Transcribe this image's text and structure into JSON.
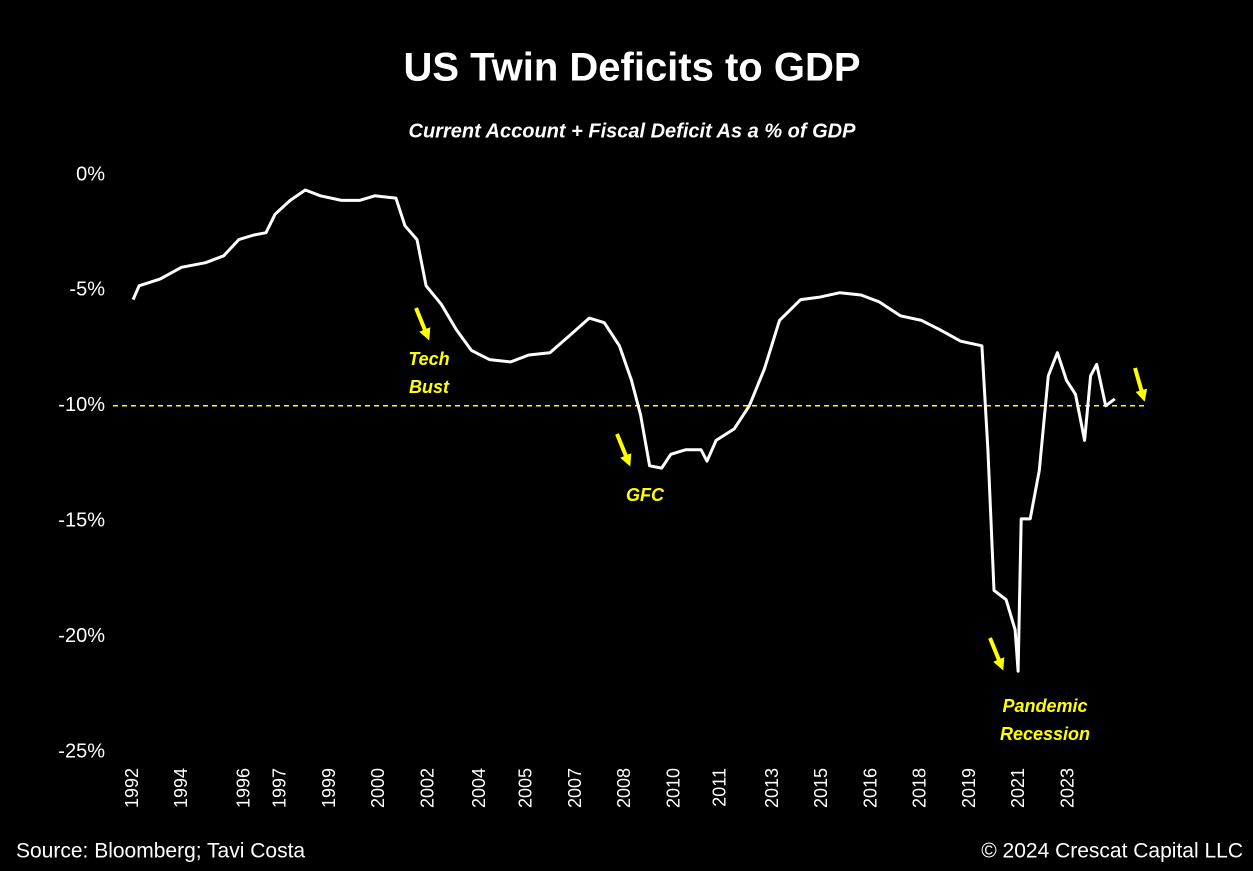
{
  "chart_data": {
    "type": "line",
    "title": "US Twin Deficits to GDP",
    "subtitle": "Current Account + Fiscal Deficit As a % of GDP",
    "source": "Source: Bloomberg; Tavi Costa",
    "copyright": "© 2024 Crescat Capital LLC",
    "x": [
      1992.0,
      1992.2,
      1992.9,
      1993.6,
      1994.4,
      1995.0,
      1995.5,
      1996.0,
      1996.4,
      1996.7,
      1997.2,
      1997.7,
      1998.2,
      1998.9,
      1999.5,
      2000.0,
      2000.7,
      2001.0,
      2001.4,
      2001.7,
      2002.2,
      2002.7,
      2003.2,
      2003.8,
      2004.5,
      2005.1,
      2005.8,
      2006.5,
      2007.1,
      2007.6,
      2008.1,
      2008.5,
      2008.8,
      2009.1,
      2009.5,
      2009.8,
      2010.3,
      2010.8,
      2011.0,
      2011.3,
      2011.9,
      2012.4,
      2012.9,
      2013.4,
      2014.1,
      2014.7,
      2015.4,
      2016.1,
      2016.7,
      2017.4,
      2018.1,
      2018.7,
      2019.4,
      2020.1,
      2020.3,
      2020.5,
      2020.9,
      2021.2,
      2021.3,
      2021.4,
      2021.7,
      2022.0,
      2022.3,
      2022.6,
      2022.9,
      2023.2,
      2023.5,
      2023.7,
      2023.9,
      2024.2,
      2024.5
    ],
    "series": [
      {
        "name": "Twin Deficits",
        "color": "#ffffff",
        "values": [
          -5.4,
          -4.8,
          -4.5,
          -4.0,
          -3.8,
          -3.5,
          -2.8,
          -2.6,
          -2.5,
          -1.7,
          -1.1,
          -0.65,
          -0.9,
          -1.1,
          -1.1,
          -0.9,
          -1.0,
          -2.2,
          -2.8,
          -4.8,
          -5.6,
          -6.7,
          -7.6,
          -8.0,
          -8.1,
          -7.8,
          -7.7,
          -6.9,
          -6.2,
          -6.4,
          -7.4,
          -8.9,
          -10.4,
          -12.6,
          -12.7,
          -12.1,
          -11.9,
          -11.9,
          -12.4,
          -11.5,
          -11.0,
          -10.0,
          -8.4,
          -6.3,
          -5.4,
          -5.3,
          -5.1,
          -5.2,
          -5.5,
          -6.1,
          -6.3,
          -6.7,
          -7.2,
          -7.4,
          -11.9,
          -18.0,
          -18.4,
          -19.7,
          -21.5,
          -14.9,
          -14.9,
          -12.8,
          -8.7,
          -7.7,
          -8.9,
          -9.5,
          -11.5,
          -8.7,
          -8.2,
          -10.0,
          -9.7
        ]
      }
    ],
    "xlim": [
      1991.5,
      2025.5
    ],
    "xticks": [
      {
        "value": 1992.0,
        "label": "1992"
      },
      {
        "value": 1993.63,
        "label": "1994"
      },
      {
        "value": 1995.7,
        "label": "1996"
      },
      {
        "value": 1996.89,
        "label": "1997"
      },
      {
        "value": 1998.52,
        "label": "1999"
      },
      {
        "value": 2000.15,
        "label": "2000"
      },
      {
        "value": 2001.78,
        "label": "2002"
      },
      {
        "value": 2003.5,
        "label": "2004"
      },
      {
        "value": 2005.04,
        "label": "2005"
      },
      {
        "value": 2006.67,
        "label": "2007"
      },
      {
        "value": 2008.3,
        "label": "2008"
      },
      {
        "value": 2009.93,
        "label": "2010"
      },
      {
        "value": 2011.45,
        "label": "2011"
      },
      {
        "value": 2013.19,
        "label": "2013"
      },
      {
        "value": 2014.82,
        "label": "2015"
      },
      {
        "value": 2016.45,
        "label": "2016"
      },
      {
        "value": 2018.08,
        "label": "2018"
      },
      {
        "value": 2019.71,
        "label": "2019"
      },
      {
        "value": 2021.34,
        "label": "2021"
      },
      {
        "value": 2022.97,
        "label": "2023"
      }
    ],
    "ylim": [
      -25,
      0
    ],
    "yticks": [
      {
        "value": 0,
        "label": "0%"
      },
      {
        "value": -5,
        "label": "-5%"
      },
      {
        "value": -10,
        "label": "-10%"
      },
      {
        "value": -15,
        "label": "-15%"
      },
      {
        "value": -20,
        "label": "-20%"
      },
      {
        "value": -25,
        "label": "-25%"
      }
    ],
    "reference_line": {
      "value": -10,
      "color": "#ffff00"
    },
    "annotations": [
      {
        "lines": [
          "Tech",
          "Bust"
        ]
      },
      {
        "lines": [
          "GFC"
        ]
      },
      {
        "lines": [
          "Pandemic",
          "Recession"
        ]
      }
    ]
  }
}
